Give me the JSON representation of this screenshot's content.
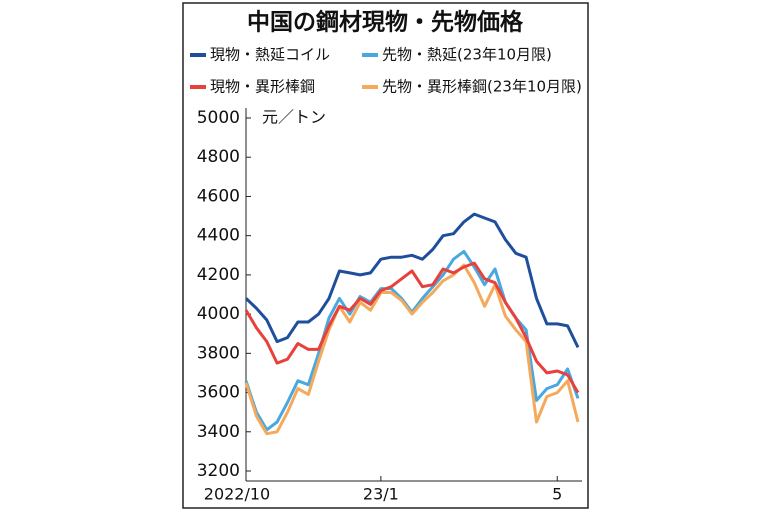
{
  "chart_data": {
    "type": "line",
    "title": "中国の鋼材現物・先物価格",
    "y_label": "元／トン",
    "categories": [
      "2022/10",
      null,
      null,
      null,
      null,
      null,
      null,
      null,
      null,
      null,
      null,
      null,
      null,
      "23/1",
      null,
      null,
      null,
      null,
      null,
      null,
      null,
      null,
      null,
      null,
      null,
      null,
      null,
      null,
      null,
      null,
      "5",
      null,
      null
    ],
    "ylim": [
      3200,
      5000
    ],
    "yticks": [
      3200,
      3400,
      3600,
      3800,
      4000,
      4200,
      4400,
      4600,
      4800,
      5000
    ],
    "series": [
      {
        "name": "現物・熱延コイル",
        "color": "#1f4e9c",
        "values": [
          4080,
          4030,
          3970,
          3860,
          3880,
          3960,
          3960,
          4000,
          4080,
          4220,
          4210,
          4200,
          4210,
          4280,
          4290,
          4290,
          4300,
          4280,
          4330,
          4400,
          4410,
          4470,
          4510,
          4490,
          4470,
          4380,
          4310,
          4290,
          4080,
          3950,
          3950,
          3940,
          3830
        ]
      },
      {
        "name": "先物・熱延(23年10月限)",
        "color": "#4aa8e0",
        "values": [
          3660,
          3500,
          3410,
          3450,
          3550,
          3660,
          3640,
          3800,
          3980,
          4080,
          4000,
          4090,
          4060,
          4130,
          4130,
          4080,
          4010,
          4080,
          4140,
          4200,
          4280,
          4320,
          4240,
          4150,
          4230,
          4060,
          3980,
          3920,
          3560,
          3620,
          3640,
          3720,
          3570
        ]
      },
      {
        "name": "現物・異形棒鋼",
        "color": "#e8413c",
        "values": [
          4020,
          3930,
          3860,
          3750,
          3770,
          3850,
          3820,
          3820,
          3940,
          4040,
          4020,
          4080,
          4050,
          4120,
          4140,
          4180,
          4220,
          4140,
          4150,
          4230,
          4210,
          4240,
          4260,
          4180,
          4160,
          4060,
          3980,
          3880,
          3760,
          3700,
          3710,
          3690,
          3600
        ]
      },
      {
        "name": "先物・異形棒鋼(23年10月限)",
        "color": "#f5a95a",
        "values": [
          3650,
          3480,
          3390,
          3400,
          3500,
          3620,
          3590,
          3760,
          3920,
          4040,
          3960,
          4060,
          4020,
          4110,
          4110,
          4070,
          4000,
          4060,
          4110,
          4170,
          4200,
          4250,
          4160,
          4040,
          4150,
          3990,
          3920,
          3860,
          3450,
          3580,
          3600,
          3660,
          3450
        ]
      }
    ]
  }
}
